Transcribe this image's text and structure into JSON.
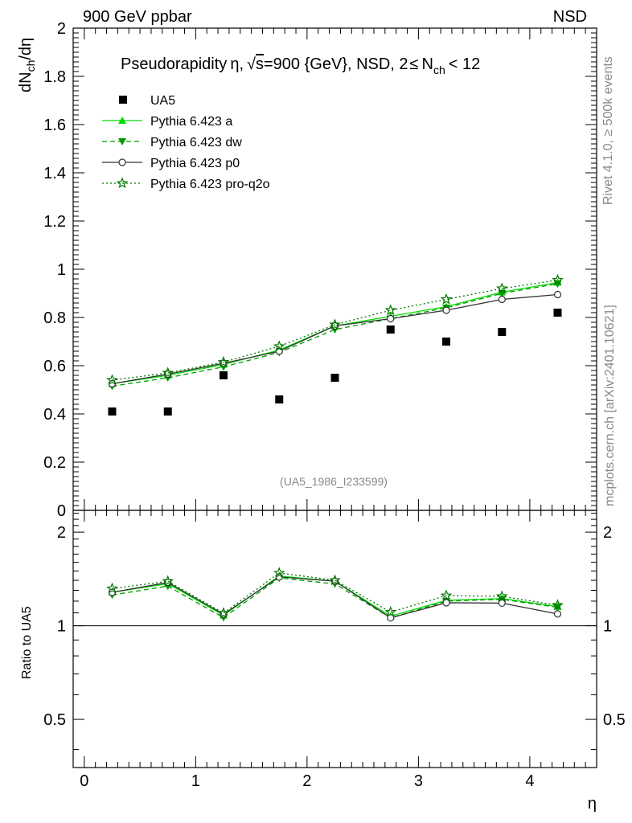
{
  "header": {
    "left_label": "900 GeV ppbar",
    "right_label": "NSD"
  },
  "side_labels": {
    "rivet": "Rivet 4.1.0, ≥ 500k events",
    "mcplots": "mcplots.cern.ch [arXiv:2401.10621]"
  },
  "chart_data": {
    "type": "line",
    "title_parts": {
      "prefix": "Pseudorapidity",
      "eta": "η",
      "sep1": ",",
      "sqrt": "√",
      "s": "s",
      "energy": "=900 {GeV}, NSD, 2",
      "le": "≤",
      "nch_n": "N",
      "nch_sub": "ch",
      "lt": "< 12"
    },
    "ylabel_parts": {
      "dN": "dN",
      "sub": "ch",
      "rest": "/dη"
    },
    "xlabel": "η",
    "ratio_ylabel": "Ratio to UA5",
    "analysis_id": "(UA5_1986_I233599)",
    "x_range": [
      -0.1,
      4.6
    ],
    "y_range": [
      0,
      2
    ],
    "ratio_range": [
      0.35,
      2.35
    ],
    "x_ticks": [
      "0",
      "1",
      "2",
      "3",
      "4"
    ],
    "y_ticks": [
      "0",
      "0.2",
      "0.4",
      "0.6",
      "0.8",
      "1",
      "1.2",
      "1.4",
      "1.6",
      "1.8",
      "2"
    ],
    "ratio_ticks": [
      "0.5",
      "1",
      "2"
    ],
    "x": [
      0.25,
      0.75,
      1.25,
      1.75,
      2.25,
      2.75,
      3.25,
      3.75,
      4.25
    ],
    "data": {
      "name": "UA5",
      "values": [
        0.41,
        0.41,
        0.56,
        0.46,
        0.55,
        0.75,
        0.7,
        0.74,
        0.82
      ]
    },
    "series": [
      {
        "name": "Pythia 6.423 a",
        "color": "#00dd00",
        "values": [
          0.525,
          0.56,
          0.605,
          0.665,
          0.765,
          0.805,
          0.845,
          0.905,
          0.945
        ]
      },
      {
        "name": "Pythia 6.423 dw",
        "color": "#009900",
        "values": [
          0.515,
          0.55,
          0.595,
          0.655,
          0.75,
          0.795,
          0.84,
          0.9,
          0.94
        ]
      },
      {
        "name": "Pythia 6.423 p0",
        "color": "#333333",
        "values": [
          0.525,
          0.565,
          0.61,
          0.66,
          0.765,
          0.795,
          0.83,
          0.875,
          0.895
        ]
      },
      {
        "name": "Pythia 6.423 pro-q2o",
        "color": "#007700",
        "values": [
          0.54,
          0.57,
          0.615,
          0.68,
          0.77,
          0.83,
          0.875,
          0.92,
          0.955
        ]
      }
    ]
  }
}
